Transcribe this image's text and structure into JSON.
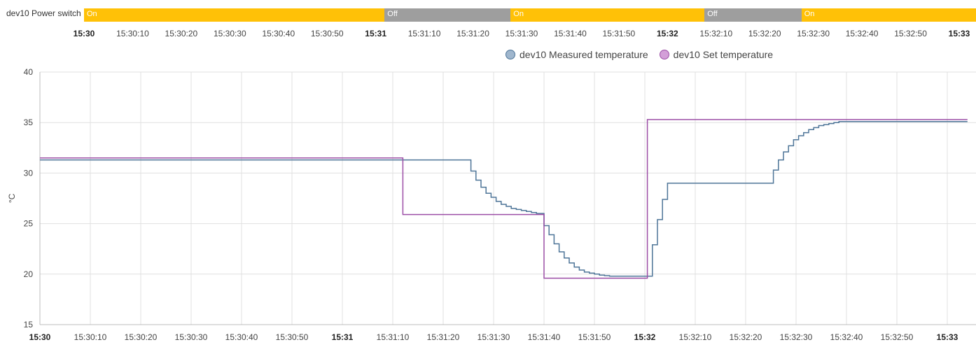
{
  "timeline": {
    "label": "dev10 Power switch",
    "segments": [
      {
        "state": "On",
        "start": "15:30:00",
        "end": "15:31:02",
        "color": "#ffc107"
      },
      {
        "state": "Off",
        "start": "15:31:02",
        "end": "15:31:28",
        "color": "#9e9e9e"
      },
      {
        "state": "On",
        "start": "15:31:28",
        "end": "15:32:08",
        "color": "#ffc107"
      },
      {
        "state": "Off",
        "start": "15:32:08",
        "end": "15:32:28",
        "color": "#9e9e9e"
      },
      {
        "state": "On",
        "start": "15:32:28",
        "end": "15:33:04",
        "color": "#ffc107"
      }
    ],
    "ticks": [
      {
        "t": "15:30:00",
        "label": "15:30",
        "major": true
      },
      {
        "t": "15:30:10",
        "label": "15:30:10",
        "major": false
      },
      {
        "t": "15:30:20",
        "label": "15:30:20",
        "major": false
      },
      {
        "t": "15:30:30",
        "label": "15:30:30",
        "major": false
      },
      {
        "t": "15:30:40",
        "label": "15:30:40",
        "major": false
      },
      {
        "t": "15:30:50",
        "label": "15:30:50",
        "major": false
      },
      {
        "t": "15:31:00",
        "label": "15:31",
        "major": true
      },
      {
        "t": "15:31:10",
        "label": "15:31:10",
        "major": false
      },
      {
        "t": "15:31:20",
        "label": "15:31:20",
        "major": false
      },
      {
        "t": "15:31:30",
        "label": "15:31:30",
        "major": false
      },
      {
        "t": "15:31:40",
        "label": "15:31:40",
        "major": false
      },
      {
        "t": "15:31:50",
        "label": "15:31:50",
        "major": false
      },
      {
        "t": "15:32:00",
        "label": "15:32",
        "major": true
      },
      {
        "t": "15:32:10",
        "label": "15:32:10",
        "major": false
      },
      {
        "t": "15:32:20",
        "label": "15:32:20",
        "major": false
      },
      {
        "t": "15:32:30",
        "label": "15:32:30",
        "major": false
      },
      {
        "t": "15:32:40",
        "label": "15:32:40",
        "major": false
      },
      {
        "t": "15:32:50",
        "label": "15:32:50",
        "major": false
      },
      {
        "t": "15:33:00",
        "label": "15:33",
        "major": true
      }
    ]
  },
  "chart_data": {
    "type": "line",
    "step": true,
    "xlim": [
      "15:30:00",
      "15:33:04"
    ],
    "ylim": [
      15,
      40
    ],
    "ylabel": "°C",
    "yticks": [
      15,
      20,
      25,
      30,
      35,
      40
    ],
    "xticks": [
      {
        "t": "15:30:00",
        "label": "15:30",
        "major": true
      },
      {
        "t": "15:30:10",
        "label": "15:30:10",
        "major": false
      },
      {
        "t": "15:30:20",
        "label": "15:30:20",
        "major": false
      },
      {
        "t": "15:30:30",
        "label": "15:30:30",
        "major": false
      },
      {
        "t": "15:30:40",
        "label": "15:30:40",
        "major": false
      },
      {
        "t": "15:30:50",
        "label": "15:30:50",
        "major": false
      },
      {
        "t": "15:31:00",
        "label": "15:31",
        "major": true
      },
      {
        "t": "15:31:10",
        "label": "15:31:10",
        "major": false
      },
      {
        "t": "15:31:20",
        "label": "15:31:20",
        "major": false
      },
      {
        "t": "15:31:30",
        "label": "15:31:30",
        "major": false
      },
      {
        "t": "15:31:40",
        "label": "15:31:40",
        "major": false
      },
      {
        "t": "15:31:50",
        "label": "15:31:50",
        "major": false
      },
      {
        "t": "15:32:00",
        "label": "15:32",
        "major": true
      },
      {
        "t": "15:32:10",
        "label": "15:32:10",
        "major": false
      },
      {
        "t": "15:32:20",
        "label": "15:32:20",
        "major": false
      },
      {
        "t": "15:32:30",
        "label": "15:32:30",
        "major": false
      },
      {
        "t": "15:32:40",
        "label": "15:32:40",
        "major": false
      },
      {
        "t": "15:32:50",
        "label": "15:32:50",
        "major": false
      },
      {
        "t": "15:33:00",
        "label": "15:33",
        "major": true
      }
    ],
    "legend_position": "top-right",
    "grid": true,
    "series": [
      {
        "name": "dev10 Measured temperature",
        "color": "#4e7598",
        "swatch": "#9fb6cd",
        "x": [
          "15:30:00",
          "15:31:25.5",
          "15:31:26.5",
          "15:31:27.5",
          "15:31:28.5",
          "15:31:29.5",
          "15:31:30.5",
          "15:31:31.5",
          "15:31:32.5",
          "15:31:33.5",
          "15:31:34.5",
          "15:31:35.5",
          "15:31:36.5",
          "15:31:37.5",
          "15:31:38.5",
          "15:31:40",
          "15:31:41",
          "15:31:42",
          "15:31:43",
          "15:31:44",
          "15:31:45",
          "15:31:46",
          "15:31:47",
          "15:31:48",
          "15:31:49",
          "15:31:50",
          "15:31:51",
          "15:31:52",
          "15:31:53",
          "15:31:54",
          "15:31:55",
          "15:31:56",
          "15:32:01.5",
          "15:32:02.5",
          "15:32:03.5",
          "15:32:04.5",
          "15:32:05.5",
          "15:32:25.5",
          "15:32:26.5",
          "15:32:27.5",
          "15:32:28.5",
          "15:32:29.5",
          "15:32:30.5",
          "15:32:31.5",
          "15:32:32.5",
          "15:32:33.5",
          "15:32:34.5",
          "15:32:35.5",
          "15:32:36.5",
          "15:32:37.5",
          "15:32:38.5",
          "15:32:39.5",
          "15:33:04"
        ],
        "y": [
          31.3,
          30.2,
          29.3,
          28.6,
          28.0,
          27.6,
          27.2,
          26.9,
          26.7,
          26.5,
          26.4,
          26.3,
          26.2,
          26.1,
          26.0,
          24.8,
          23.9,
          23.0,
          22.2,
          21.6,
          21.1,
          20.7,
          20.4,
          20.2,
          20.1,
          20.0,
          19.9,
          19.85,
          19.8,
          19.8,
          19.8,
          19.8,
          22.9,
          25.4,
          27.4,
          29.0,
          29.0,
          30.3,
          31.3,
          32.1,
          32.7,
          33.3,
          33.7,
          34.0,
          34.3,
          34.5,
          34.7,
          34.8,
          34.9,
          35.0,
          35.1,
          35.1,
          35.1
        ]
      },
      {
        "name": "dev10 Set temperature",
        "color": "#9c4ea6",
        "swatch": "#d39fd8",
        "x": [
          "15:30:00",
          "15:31:12",
          "15:31:40",
          "15:32:00.5",
          "15:33:04"
        ],
        "y": [
          31.5,
          25.9,
          19.6,
          35.3,
          35.3
        ]
      }
    ]
  }
}
